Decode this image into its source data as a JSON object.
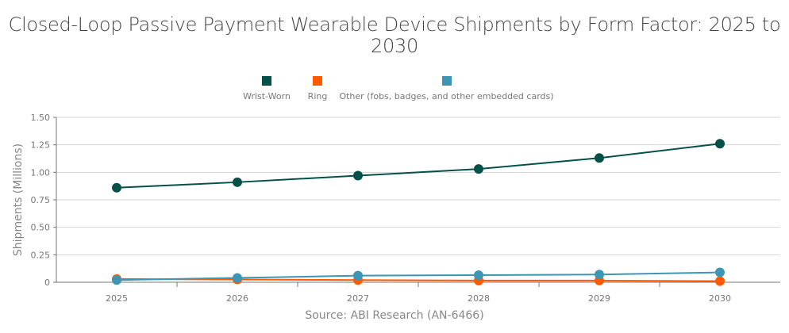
{
  "chart_data": {
    "type": "line",
    "title": "Closed-Loop Passive Payment Wearable Device Shipments by Form Factor: 2025 to 2030",
    "ylabel": "Shipments (Millions)",
    "xlabel": "",
    "source": "Source: ABI Research (AN-6466)",
    "categories": [
      "2025",
      "2026",
      "2027",
      "2028",
      "2029",
      "2030"
    ],
    "ylim": [
      0,
      1.5
    ],
    "yticks": [
      0,
      0.25,
      0.5,
      0.75,
      1.0,
      1.25,
      1.5
    ],
    "ytick_labels": [
      "0",
      "0.25",
      "0.50",
      "0.75",
      "1.00",
      "1.25",
      "1.50"
    ],
    "grid": true,
    "legend_position": "top",
    "series": [
      {
        "name": "Wrist-Worn",
        "color": "#05514a",
        "values": [
          0.86,
          0.91,
          0.97,
          1.03,
          1.13,
          1.26
        ]
      },
      {
        "name": "Ring",
        "color": "#ff5a00",
        "values": [
          0.03,
          0.025,
          0.02,
          0.015,
          0.015,
          0.01
        ]
      },
      {
        "name": "Other (fobs, badges, and other embedded cards)",
        "color": "#3d96b4",
        "values": [
          0.02,
          0.04,
          0.06,
          0.065,
          0.07,
          0.09
        ]
      }
    ]
  }
}
